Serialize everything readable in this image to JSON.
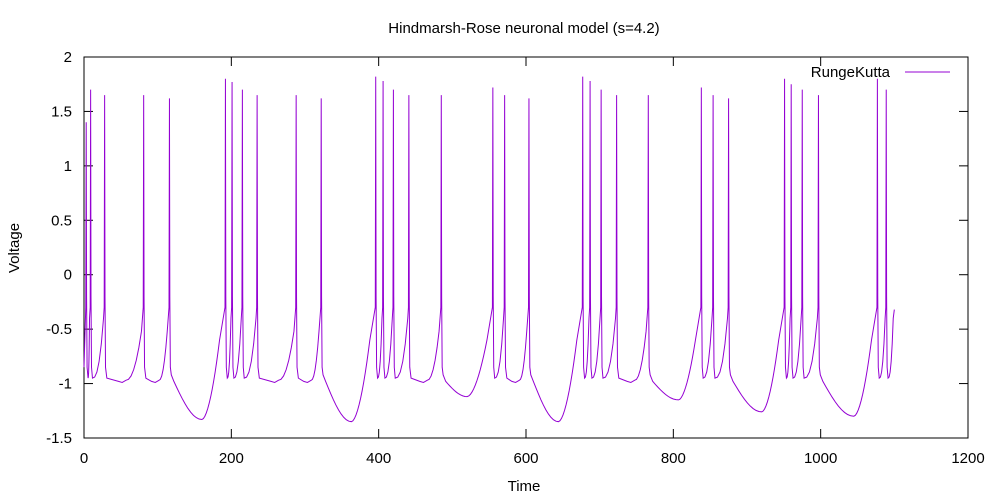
{
  "chart_data": {
    "type": "line",
    "title": "Hindmarsh-Rose neuronal model (s=4.2)",
    "xlabel": "Time",
    "ylabel": "Voltage",
    "xlim": [
      0,
      1200
    ],
    "ylim": [
      -1.5,
      2
    ],
    "xticks": [
      0,
      200,
      400,
      600,
      800,
      1000,
      1200
    ],
    "yticks": [
      -1.5,
      -1,
      -0.5,
      0,
      0.5,
      1,
      1.5,
      2
    ],
    "grid": false,
    "legend": "top-right",
    "series": [
      {
        "name": "RungeKutta",
        "color": "#9400d3",
        "x_end": 1100,
        "start_value": -0.85,
        "end_value": -0.32,
        "spikes": [
          {
            "t": 3,
            "peak": 1.4
          },
          {
            "t": 9,
            "peak": 1.7
          },
          {
            "t": 28,
            "peak": 1.65
          },
          {
            "t": 81,
            "peak": 1.65
          },
          {
            "t": 116,
            "peak": 1.62
          },
          {
            "t": 192,
            "peak": 1.8
          },
          {
            "t": 201,
            "peak": 1.77
          },
          {
            "t": 215,
            "peak": 1.7
          },
          {
            "t": 235,
            "peak": 1.65
          },
          {
            "t": 288,
            "peak": 1.65
          },
          {
            "t": 322,
            "peak": 1.62
          },
          {
            "t": 396,
            "peak": 1.82
          },
          {
            "t": 406,
            "peak": 1.78
          },
          {
            "t": 420,
            "peak": 1.7
          },
          {
            "t": 441,
            "peak": 1.65
          },
          {
            "t": 485,
            "peak": 1.65
          },
          {
            "t": 555,
            "peak": 1.72
          },
          {
            "t": 571,
            "peak": 1.65
          },
          {
            "t": 604,
            "peak": 1.62
          },
          {
            "t": 677,
            "peak": 1.82
          },
          {
            "t": 687,
            "peak": 1.78
          },
          {
            "t": 702,
            "peak": 1.7
          },
          {
            "t": 723,
            "peak": 1.65
          },
          {
            "t": 766,
            "peak": 1.65
          },
          {
            "t": 838,
            "peak": 1.72
          },
          {
            "t": 854,
            "peak": 1.65
          },
          {
            "t": 875,
            "peak": 1.62
          },
          {
            "t": 951,
            "peak": 1.8
          },
          {
            "t": 960,
            "peak": 1.75
          },
          {
            "t": 975,
            "peak": 1.7
          },
          {
            "t": 997,
            "peak": 1.65
          },
          {
            "t": 1077,
            "peak": 1.8
          },
          {
            "t": 1089,
            "peak": 1.7
          }
        ],
        "troughs": [
          {
            "t": 160,
            "value": -1.33
          },
          {
            "t": 363,
            "value": -1.35
          },
          {
            "t": 520,
            "value": -1.12
          },
          {
            "t": 644,
            "value": -1.35
          },
          {
            "t": 807,
            "value": -1.15
          },
          {
            "t": 920,
            "value": -1.26
          },
          {
            "t": 1045,
            "value": -1.3
          }
        ]
      }
    ]
  }
}
